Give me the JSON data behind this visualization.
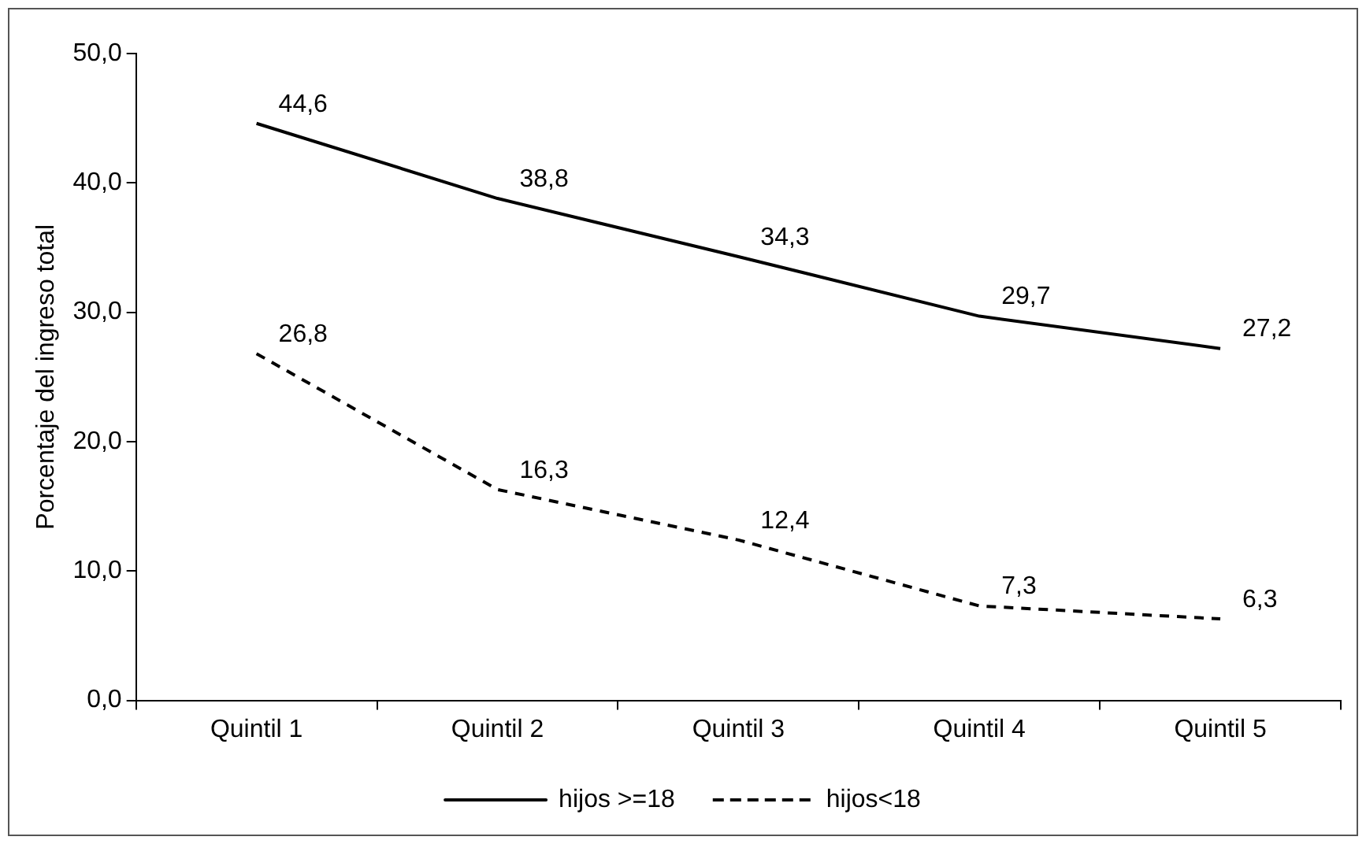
{
  "chart_data": {
    "type": "line",
    "ylabel": "Porcentaje del ingreso total",
    "categories": [
      "Quintil 1",
      "Quintil 2",
      "Quintil 3",
      "Quintil 4",
      "Quintil 5"
    ],
    "series": [
      {
        "name": "hijos >=18",
        "color": "#000000",
        "line_style": "solid",
        "values": [
          44.6,
          38.8,
          34.3,
          29.7,
          27.2
        ],
        "value_labels": [
          "44,6",
          "38,8",
          "34,3",
          "29,7",
          "27,2"
        ]
      },
      {
        "name": "hijos<18",
        "color": "#000000",
        "line_style": "dashed",
        "values": [
          26.8,
          16.3,
          12.4,
          7.3,
          6.3
        ],
        "value_labels": [
          "26,8",
          "16,3",
          "12,4",
          "7,3",
          "6,3"
        ]
      }
    ],
    "ylim": [
      0,
      50
    ],
    "yticks": [
      {
        "value": 0,
        "label": "0,0"
      },
      {
        "value": 10,
        "label": "10,0"
      },
      {
        "value": 20,
        "label": "20,0"
      },
      {
        "value": 30,
        "label": "30,0"
      },
      {
        "value": 40,
        "label": "40,0"
      },
      {
        "value": 50,
        "label": "50,0"
      }
    ],
    "grid": false,
    "legend": "bottom",
    "marker": "none"
  }
}
